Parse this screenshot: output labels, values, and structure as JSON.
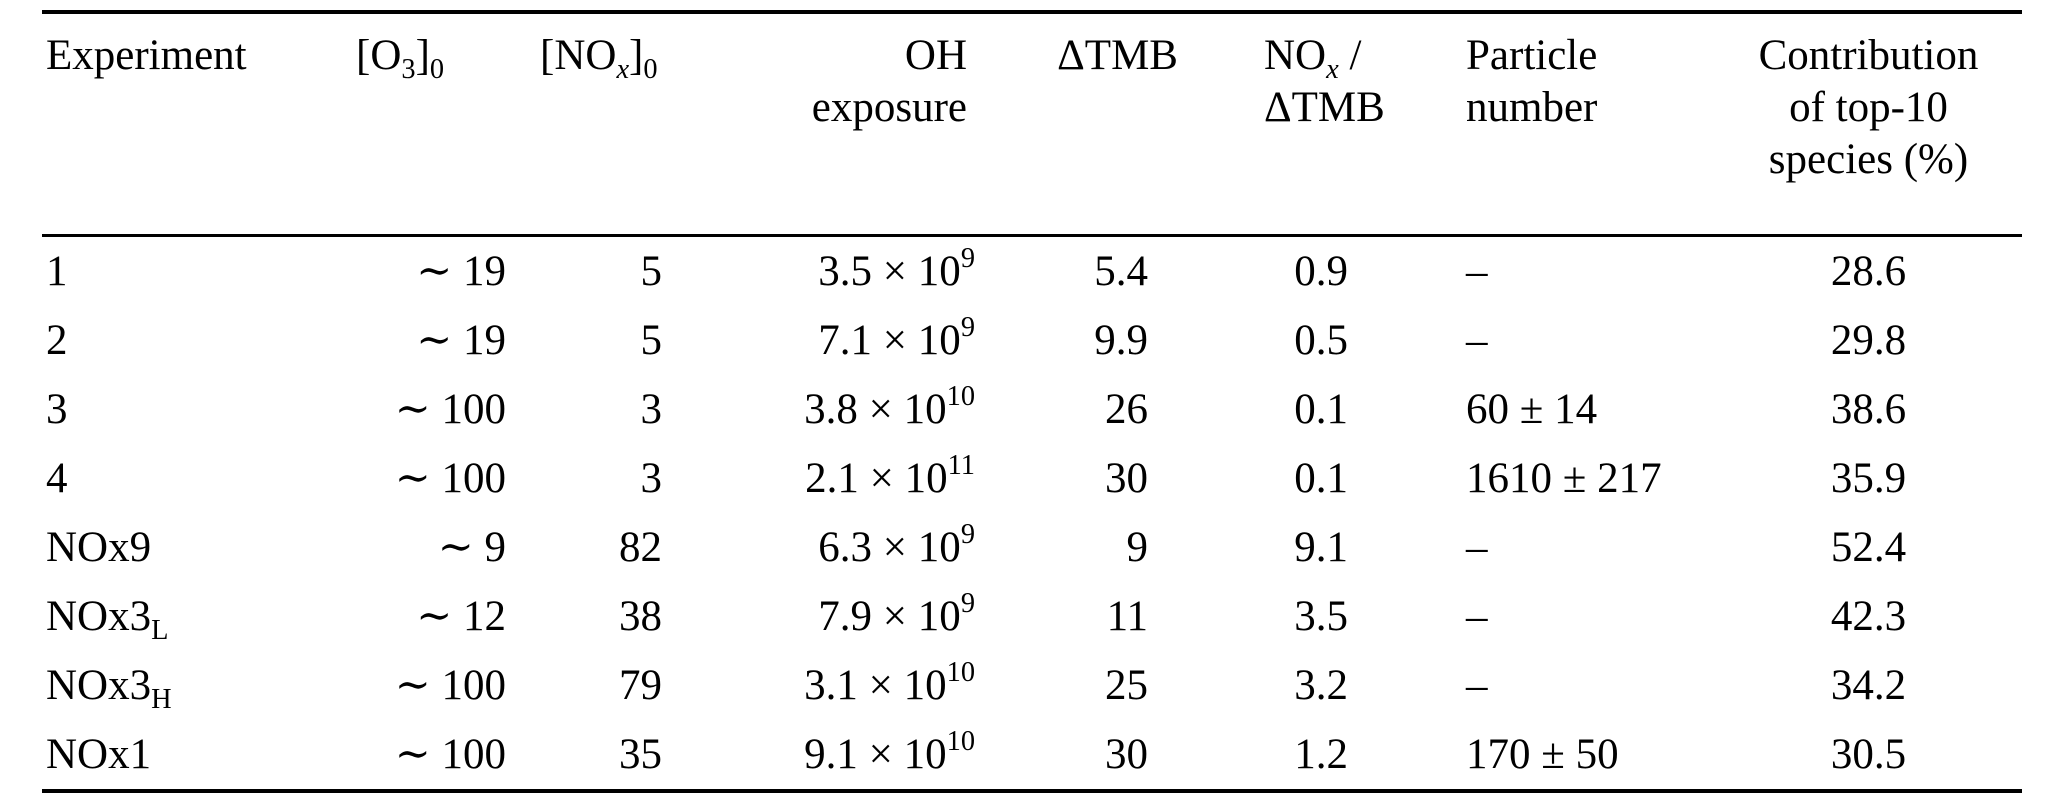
{
  "table": {
    "columns": [
      {
        "id": "experiment",
        "header": [
          [
            "Experiment"
          ]
        ]
      },
      {
        "id": "o3-initial",
        "header": [
          [
            "[O",
            {
              "t": "3",
              "s": "sub"
            },
            "]",
            {
              "t": "0",
              "s": "sub"
            }
          ]
        ]
      },
      {
        "id": "nox-initial",
        "header": [
          [
            "[NO",
            {
              "t": "x",
              "s": "sub-i"
            },
            "]",
            {
              "t": "0",
              "s": "sub"
            }
          ]
        ]
      },
      {
        "id": "oh-exposure",
        "header": [
          [
            "OH"
          ],
          [
            "exposure"
          ]
        ]
      },
      {
        "id": "delta-tmb",
        "header": [
          [
            "ΔTMB"
          ]
        ]
      },
      {
        "id": "nox-per-delta-tmb",
        "header": [
          [
            "NO",
            {
              "t": "x",
              "s": "sub-i"
            },
            " /"
          ],
          [
            "ΔTMB"
          ]
        ]
      },
      {
        "id": "particle-number",
        "header": [
          [
            "Particle"
          ],
          [
            "number"
          ]
        ]
      },
      {
        "id": "top10-contribution",
        "header": [
          [
            "Contribution"
          ],
          [
            "of top-10"
          ],
          [
            "species (%)"
          ]
        ]
      }
    ],
    "rows": [
      {
        "id": "exp-1",
        "cells": [
          [
            "1"
          ],
          [
            "∼ 19"
          ],
          [
            "5"
          ],
          [
            "3.5 × 10",
            {
              "t": "9",
              "s": "sup"
            }
          ],
          [
            "5.4"
          ],
          [
            "0.9"
          ],
          [
            "–"
          ],
          [
            "28.6"
          ]
        ]
      },
      {
        "id": "exp-2",
        "cells": [
          [
            "2"
          ],
          [
            "∼ 19"
          ],
          [
            "5"
          ],
          [
            "7.1 × 10",
            {
              "t": "9",
              "s": "sup"
            }
          ],
          [
            "9.9"
          ],
          [
            "0.5"
          ],
          [
            "–"
          ],
          [
            "29.8"
          ]
        ]
      },
      {
        "id": "exp-3",
        "cells": [
          [
            "3"
          ],
          [
            "∼ 100"
          ],
          [
            "3"
          ],
          [
            "3.8 × 10",
            {
              "t": "10",
              "s": "sup"
            }
          ],
          [
            "26"
          ],
          [
            "0.1"
          ],
          [
            "60 ± 14"
          ],
          [
            "38.6"
          ]
        ]
      },
      {
        "id": "exp-4",
        "cells": [
          [
            "4"
          ],
          [
            "∼ 100"
          ],
          [
            "3"
          ],
          [
            "2.1 × 10",
            {
              "t": "11",
              "s": "sup"
            }
          ],
          [
            "30"
          ],
          [
            "0.1"
          ],
          [
            "1610 ± 217"
          ],
          [
            "35.9"
          ]
        ]
      },
      {
        "id": "exp-nox9",
        "cells": [
          [
            "NOx9"
          ],
          [
            "∼ 9"
          ],
          [
            "82"
          ],
          [
            "6.3 × 10",
            {
              "t": "9",
              "s": "sup"
            }
          ],
          [
            "9"
          ],
          [
            "9.1"
          ],
          [
            "–"
          ],
          [
            "52.4"
          ]
        ]
      },
      {
        "id": "exp-nox3l",
        "cells": [
          [
            "NOx3",
            {
              "t": "L",
              "s": "sub"
            }
          ],
          [
            "∼ 12"
          ],
          [
            "38"
          ],
          [
            "7.9 × 10",
            {
              "t": "9",
              "s": "sup"
            }
          ],
          [
            "11"
          ],
          [
            "3.5"
          ],
          [
            "–"
          ],
          [
            "42.3"
          ]
        ]
      },
      {
        "id": "exp-nox3h",
        "cells": [
          [
            "NOx3",
            {
              "t": "H",
              "s": "sub"
            }
          ],
          [
            "∼ 100"
          ],
          [
            "79"
          ],
          [
            "3.1 × 10",
            {
              "t": "10",
              "s": "sup"
            }
          ],
          [
            "25"
          ],
          [
            "3.2"
          ],
          [
            "–"
          ],
          [
            "34.2"
          ]
        ]
      },
      {
        "id": "exp-nox1",
        "cells": [
          [
            "NOx1"
          ],
          [
            "∼ 100"
          ],
          [
            "35"
          ],
          [
            "9.1 × 10",
            {
              "t": "10",
              "s": "sup"
            }
          ],
          [
            "30"
          ],
          [
            "1.2"
          ],
          [
            "170 ± 50"
          ],
          [
            "30.5"
          ]
        ]
      }
    ]
  }
}
